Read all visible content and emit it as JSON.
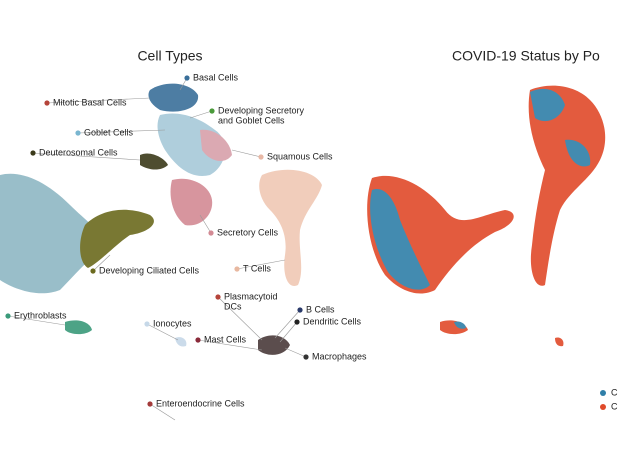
{
  "panels": [
    {
      "title": "Cell Types",
      "labels": [
        {
          "lines": [
            "Basal Cells"
          ],
          "color": "#3a6f9a"
        },
        {
          "lines": [
            "Mitotic Basal Cells"
          ],
          "color": "#b5443a"
        },
        {
          "lines": [
            "Developing Secretory",
            "and Goblet Cells"
          ],
          "color": "#4a9a3a"
        },
        {
          "lines": [
            "Goblet Cells"
          ],
          "color": "#7ab6d0"
        },
        {
          "lines": [
            "Deuterosomal Cells"
          ],
          "color": "#3b3a1a"
        },
        {
          "lines": [
            "Squamous Cells"
          ],
          "color": "#e8b8a6"
        },
        {
          "lines": [
            "Secretory Cells"
          ],
          "color": "#d38a94"
        },
        {
          "lines": [
            "Developing Ciliated Cells"
          ],
          "color": "#6b6a1e"
        },
        {
          "lines": [
            "T Cells"
          ],
          "color": "#e8b8a0"
        },
        {
          "lines": [
            "Plasmacytoid",
            "DCs"
          ],
          "color": "#b5443a"
        },
        {
          "lines": [
            "B Cells"
          ],
          "color": "#2a3a6a"
        },
        {
          "lines": [
            "Dendritic Cells"
          ],
          "color": "#222222"
        },
        {
          "lines": [
            "Erythroblasts"
          ],
          "color": "#3a9a7a"
        },
        {
          "lines": [
            "Ionocytes"
          ],
          "color": "#c6d8e8"
        },
        {
          "lines": [
            "Mast Cells"
          ],
          "color": "#8a2a3a"
        },
        {
          "lines": [
            "Macrophages"
          ],
          "color": "#333333"
        },
        {
          "lines": [
            "Enteroendocrine Cells"
          ],
          "color": "#a33a3a"
        }
      ]
    },
    {
      "title": "COVID-19 Status by Po",
      "legend": [
        {
          "name": "C",
          "color": "#2f7fa8"
        },
        {
          "name": "C",
          "color": "#e04a2a"
        }
      ]
    }
  ]
}
